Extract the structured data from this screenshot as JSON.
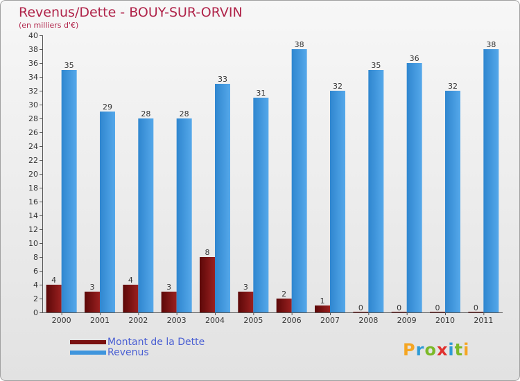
{
  "title": "Revenus/Dette - BOUY-SUR-ORVIN",
  "subtitle": "(en milliers d'€)",
  "brand": {
    "letters": [
      "P",
      "r",
      "o",
      "x",
      "i",
      "t",
      "i"
    ],
    "colors": [
      "#f5a623",
      "#2e9bd6",
      "#7bb928",
      "#e0312f",
      "#2e9bd6",
      "#7bb928",
      "#f5a623"
    ]
  },
  "chart_data": {
    "type": "bar",
    "categories": [
      "2000",
      "2001",
      "2002",
      "2003",
      "2004",
      "2005",
      "2006",
      "2007",
      "2008",
      "2009",
      "2010",
      "2011"
    ],
    "series": [
      {
        "name": "Montant de la Dette",
        "color": "#7a1010",
        "values": [
          4,
          3,
          4,
          3,
          8,
          3,
          2,
          1,
          0,
          0,
          0,
          0
        ]
      },
      {
        "name": "Revenus",
        "color": "#3f95dd",
        "values": [
          35,
          29,
          28,
          28,
          33,
          31,
          38,
          32,
          35,
          36,
          32,
          38
        ]
      }
    ],
    "ylim": [
      0,
      40
    ],
    "ytick_step": 2,
    "grid": false,
    "legend": "bottom-left"
  }
}
